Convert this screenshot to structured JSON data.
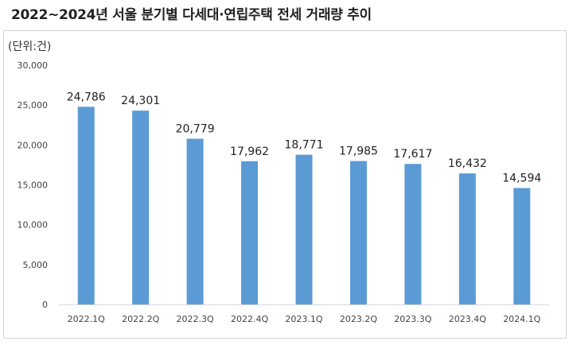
{
  "chart_data": {
    "type": "bar",
    "title": "2022~2024년 서울 분기별 다세대·연립주택 전세 거래량 추이",
    "unit_label": "(단위:건)",
    "categories": [
      "2022.1Q",
      "2022.2Q",
      "2022.3Q",
      "2022.4Q",
      "2023.1Q",
      "2023.2Q",
      "2023.3Q",
      "2023.4Q",
      "2024.1Q"
    ],
    "values": [
      24786,
      24301,
      20779,
      17962,
      18771,
      17985,
      17617,
      16432,
      14594
    ],
    "value_labels": [
      "24,786",
      "24,301",
      "20,779",
      "17,962",
      "18,771",
      "17,985",
      "17,617",
      "16,432",
      "14,594"
    ],
    "ylim": [
      0,
      30000
    ],
    "yticks": [
      0,
      5000,
      10000,
      15000,
      20000,
      25000,
      30000
    ],
    "ytick_labels": [
      "0",
      "5,000",
      "10,000",
      "15,000",
      "20,000",
      "25,000",
      "30,000"
    ],
    "bar_color": "#5b9bd5",
    "grid": false,
    "legend": "none"
  }
}
